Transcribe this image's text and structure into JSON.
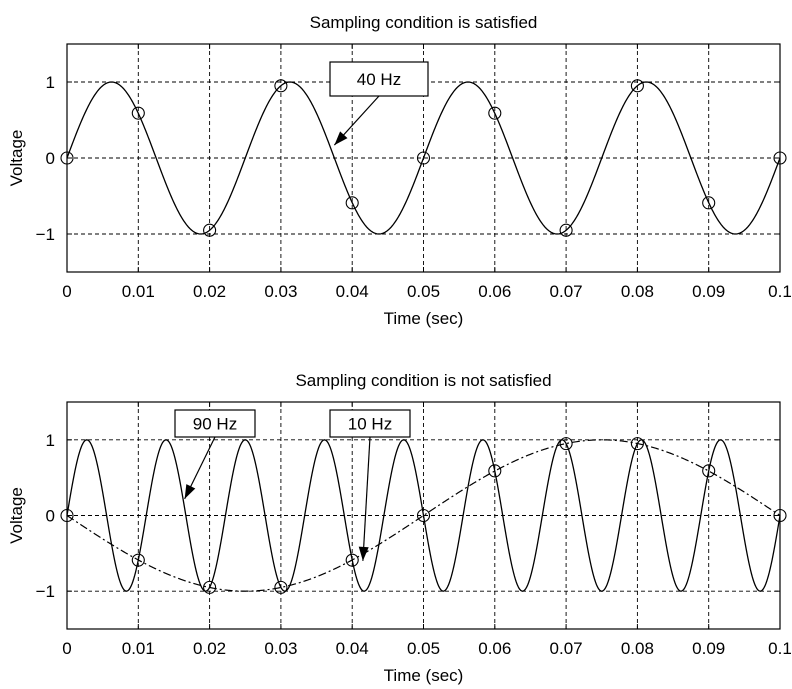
{
  "chart_data": [
    {
      "type": "line",
      "title": "Sampling condition is satisfied",
      "xlabel": "Time (sec)",
      "ylabel": "Voltage",
      "xlim": [
        0,
        0.1
      ],
      "ylim": [
        -1.5,
        1.5
      ],
      "grid": true,
      "x_ticks": [
        {
          "value": 0,
          "label": "0"
        },
        {
          "value": 0.01,
          "label": "0.01"
        },
        {
          "value": 0.02,
          "label": "0.02"
        },
        {
          "value": 0.03,
          "label": "0.03"
        },
        {
          "value": 0.04,
          "label": "0.04"
        },
        {
          "value": 0.05,
          "label": "0.05"
        },
        {
          "value": 0.06,
          "label": "0.06"
        },
        {
          "value": 0.07,
          "label": "0.07"
        },
        {
          "value": 0.08,
          "label": "0.08"
        },
        {
          "value": 0.09,
          "label": "0.09"
        },
        {
          "value": 0.1,
          "label": "0.1"
        }
      ],
      "y_ticks": [
        {
          "value": 1,
          "label": "1"
        },
        {
          "value": 0,
          "label": "0"
        },
        {
          "value": -1,
          "label": "−1"
        }
      ],
      "series": [
        {
          "style": "solid",
          "frequency_hz": 40
        }
      ],
      "samples": {
        "x": [
          0,
          0.01,
          0.02,
          0.03,
          0.04,
          0.05,
          0.06,
          0.07,
          0.08,
          0.09,
          0.1
        ],
        "y": [
          0,
          0.59,
          -0.95,
          0.95,
          -0.59,
          0,
          0.59,
          -0.95,
          0.95,
          -0.59,
          0
        ]
      },
      "annotations": [
        {
          "text": "40 Hz",
          "arrow_to": [
            0.0375,
            0.17
          ]
        }
      ]
    },
    {
      "type": "line",
      "title": "Sampling condition is not satisfied",
      "xlabel": "Time (sec)",
      "ylabel": "Voltage",
      "xlim": [
        0,
        0.1
      ],
      "ylim": [
        -1.5,
        1.5
      ],
      "grid": true,
      "x_ticks": [
        {
          "value": 0,
          "label": "0"
        },
        {
          "value": 0.01,
          "label": "0.01"
        },
        {
          "value": 0.02,
          "label": "0.02"
        },
        {
          "value": 0.03,
          "label": "0.03"
        },
        {
          "value": 0.04,
          "label": "0.04"
        },
        {
          "value": 0.05,
          "label": "0.05"
        },
        {
          "value": 0.06,
          "label": "0.06"
        },
        {
          "value": 0.07,
          "label": "0.07"
        },
        {
          "value": 0.08,
          "label": "0.08"
        },
        {
          "value": 0.09,
          "label": "0.09"
        },
        {
          "value": 0.1,
          "label": "0.1"
        }
      ],
      "y_ticks": [
        {
          "value": 1,
          "label": "1"
        },
        {
          "value": 0,
          "label": "0"
        },
        {
          "value": -1,
          "label": "−1"
        }
      ],
      "series": [
        {
          "style": "solid",
          "frequency_hz": 90
        },
        {
          "style": "dash-dot",
          "frequency_hz": 10
        }
      ],
      "samples": {
        "x": [
          0,
          0.01,
          0.02,
          0.03,
          0.04,
          0.05,
          0.06,
          0.07,
          0.08,
          0.09,
          0.1
        ],
        "y": [
          0,
          -0.59,
          -0.95,
          -0.95,
          -0.59,
          0,
          0.59,
          0.95,
          0.95,
          0.59,
          0
        ]
      },
      "annotations": [
        {
          "text": "90 Hz",
          "arrow_to": [
            0.0165,
            0.22
          ]
        },
        {
          "text": "10 Hz",
          "arrow_to": [
            0.0415,
            -0.6
          ]
        }
      ]
    }
  ]
}
